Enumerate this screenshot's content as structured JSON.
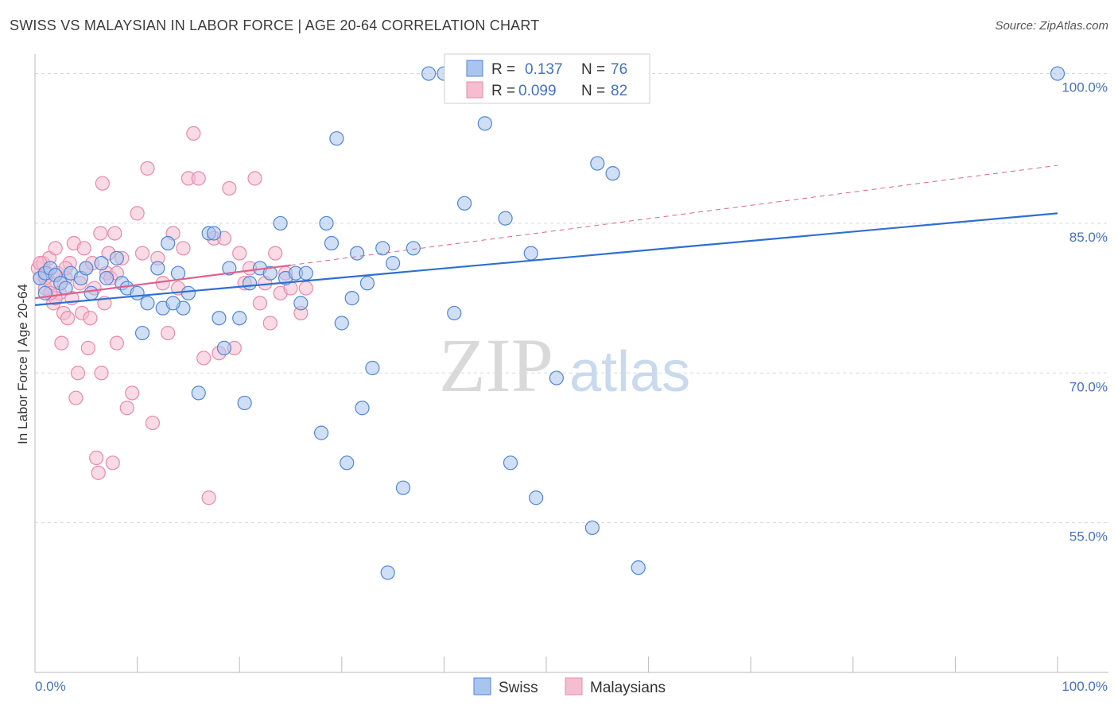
{
  "title": "SWISS VS MALAYSIAN IN LABOR FORCE | AGE 20-64 CORRELATION CHART",
  "source": "Source: ZipAtlas.com",
  "watermark": {
    "zip": "ZIP",
    "atlas": "atlas"
  },
  "colors": {
    "swiss_fill": "#a9c4ef",
    "swiss_stroke": "#4f86d6",
    "swiss_line": "#2f6fd0",
    "malay_fill": "#f6bcd0",
    "malay_stroke": "#e98aab",
    "malay_line": "#e0628c",
    "grid": "#d8d8d8",
    "label": "#4472c4"
  },
  "legend": {
    "swiss": {
      "r_label": "R =",
      "r_value": "0.137",
      "n_label": "N =",
      "n_value": "76"
    },
    "malay": {
      "r_label": "R =",
      "r_value": "0.099",
      "n_label": "N =",
      "n_value": "82"
    }
  },
  "chart_data": {
    "type": "scatter",
    "title": "SWISS VS MALAYSIAN IN LABOR FORCE | AGE 20-64 CORRELATION CHART",
    "xlabel": "",
    "ylabel": "In Labor Force | Age 20-64",
    "xlim": [
      0,
      100
    ],
    "ylim": [
      40,
      102
    ],
    "x_tick_labels": [
      "0.0%",
      "100.0%"
    ],
    "y_ticks": [
      55,
      70,
      85,
      100
    ],
    "y_tick_labels": [
      "55.0%",
      "70.0%",
      "85.0%",
      "100.0%"
    ],
    "grid": "horizontal dashed",
    "legend_position": "top-center",
    "series": [
      {
        "name": "Swiss",
        "R": 0.137,
        "N": 76,
        "trend": {
          "x": [
            0,
            100
          ],
          "y": [
            76.8,
            86.0
          ],
          "style": "solid"
        },
        "points": [
          [
            0.5,
            79.5
          ],
          [
            1.0,
            80.0
          ],
          [
            1.5,
            80.5
          ],
          [
            2.0,
            79.8
          ],
          [
            2.5,
            79.0
          ],
          [
            3.0,
            78.5
          ],
          [
            3.5,
            80.0
          ],
          [
            4.5,
            79.5
          ],
          [
            5.5,
            78.0
          ],
          [
            6.5,
            81.0
          ],
          [
            7.0,
            79.5
          ],
          [
            8.0,
            81.5
          ],
          [
            8.5,
            79.0
          ],
          [
            9.0,
            78.5
          ],
          [
            10.0,
            78.0
          ],
          [
            11.0,
            77.0
          ],
          [
            10.5,
            74.0
          ],
          [
            12.0,
            80.5
          ],
          [
            12.5,
            76.5
          ],
          [
            13.0,
            83.0
          ],
          [
            14.0,
            80.0
          ],
          [
            14.5,
            76.5
          ],
          [
            15.0,
            78.0
          ],
          [
            16.0,
            68.0
          ],
          [
            17.0,
            84.0
          ],
          [
            17.5,
            84.0
          ],
          [
            18.0,
            75.5
          ],
          [
            18.5,
            72.5
          ],
          [
            19.0,
            80.5
          ],
          [
            20.0,
            75.5
          ],
          [
            20.5,
            67.0
          ],
          [
            21.0,
            79.0
          ],
          [
            22.0,
            80.5
          ],
          [
            23.0,
            80.0
          ],
          [
            24.0,
            85.0
          ],
          [
            24.5,
            79.5
          ],
          [
            25.5,
            80.0
          ],
          [
            26.0,
            77.0
          ],
          [
            26.5,
            80.0
          ],
          [
            28.0,
            64.0
          ],
          [
            28.5,
            85.0
          ],
          [
            29.0,
            83.0
          ],
          [
            29.5,
            93.5
          ],
          [
            30.0,
            75.0
          ],
          [
            30.5,
            61.0
          ],
          [
            31.0,
            77.5
          ],
          [
            31.5,
            82.0
          ],
          [
            32.0,
            66.5
          ],
          [
            32.5,
            79.0
          ],
          [
            33.0,
            70.5
          ],
          [
            34.0,
            82.5
          ],
          [
            34.5,
            50.0
          ],
          [
            35.0,
            81.0
          ],
          [
            36.0,
            58.5
          ],
          [
            37.0,
            82.5
          ],
          [
            38.5,
            100.0
          ],
          [
            40.0,
            100.0
          ],
          [
            41.0,
            76.0
          ],
          [
            42.0,
            87.0
          ],
          [
            43.0,
            100.0
          ],
          [
            44.0,
            95.0
          ],
          [
            45.5,
            100.0
          ],
          [
            46.0,
            85.5
          ],
          [
            46.5,
            61.0
          ],
          [
            48.5,
            82.0
          ],
          [
            49.0,
            57.5
          ],
          [
            51.0,
            69.5
          ],
          [
            52.0,
            100.0
          ],
          [
            54.5,
            54.5
          ],
          [
            55.0,
            91.0
          ],
          [
            56.5,
            90.0
          ],
          [
            59.0,
            50.5
          ],
          [
            100.0,
            100.0
          ],
          [
            1.0,
            78.0
          ],
          [
            5.0,
            80.5
          ],
          [
            13.5,
            77.0
          ]
        ]
      },
      {
        "name": "Malaysians",
        "R": 0.099,
        "N": 82,
        "trend": {
          "x": [
            0,
            25
          ],
          "y": [
            77.5,
            80.8
          ],
          "style": "solid",
          "extended": {
            "x": [
              25,
              100
            ],
            "y": [
              80.8,
              90.8
            ],
            "style": "dashed"
          }
        },
        "points": [
          [
            0.3,
            80.5
          ],
          [
            0.5,
            79.5
          ],
          [
            0.8,
            81.0
          ],
          [
            1.0,
            78.5
          ],
          [
            1.2,
            80.0
          ],
          [
            1.4,
            81.5
          ],
          [
            1.6,
            79.0
          ],
          [
            1.8,
            77.0
          ],
          [
            2.0,
            82.5
          ],
          [
            2.2,
            80.0
          ],
          [
            2.4,
            78.0
          ],
          [
            2.6,
            73.0
          ],
          [
            2.8,
            76.0
          ],
          [
            3.0,
            79.5
          ],
          [
            3.2,
            75.5
          ],
          [
            3.4,
            81.0
          ],
          [
            3.6,
            77.5
          ],
          [
            3.8,
            83.0
          ],
          [
            4.0,
            67.5
          ],
          [
            4.2,
            70.0
          ],
          [
            4.4,
            79.0
          ],
          [
            4.6,
            76.0
          ],
          [
            4.8,
            82.5
          ],
          [
            5.0,
            80.5
          ],
          [
            5.2,
            72.5
          ],
          [
            5.4,
            75.5
          ],
          [
            5.6,
            81.0
          ],
          [
            5.8,
            78.5
          ],
          [
            6.0,
            61.5
          ],
          [
            6.2,
            60.0
          ],
          [
            6.4,
            84.0
          ],
          [
            6.6,
            89.0
          ],
          [
            6.8,
            77.0
          ],
          [
            7.0,
            80.0
          ],
          [
            7.2,
            82.0
          ],
          [
            7.4,
            79.5
          ],
          [
            7.6,
            61.0
          ],
          [
            7.8,
            84.0
          ],
          [
            8.0,
            80.0
          ],
          [
            8.5,
            81.5
          ],
          [
            9.0,
            66.5
          ],
          [
            9.5,
            68.0
          ],
          [
            10.0,
            86.0
          ],
          [
            10.5,
            82.0
          ],
          [
            11.0,
            90.5
          ],
          [
            11.5,
            65.0
          ],
          [
            12.0,
            81.5
          ],
          [
            12.5,
            79.0
          ],
          [
            13.0,
            74.0
          ],
          [
            13.5,
            84.0
          ],
          [
            14.0,
            78.5
          ],
          [
            14.5,
            82.5
          ],
          [
            15.0,
            89.5
          ],
          [
            15.5,
            94.0
          ],
          [
            16.0,
            89.5
          ],
          [
            16.5,
            71.5
          ],
          [
            17.0,
            57.5
          ],
          [
            17.5,
            83.5
          ],
          [
            18.0,
            72.0
          ],
          [
            18.5,
            83.5
          ],
          [
            19.0,
            88.5
          ],
          [
            19.5,
            72.5
          ],
          [
            20.0,
            82.0
          ],
          [
            20.5,
            79.0
          ],
          [
            21.0,
            80.5
          ],
          [
            21.5,
            89.5
          ],
          [
            22.0,
            77.0
          ],
          [
            22.5,
            79.0
          ],
          [
            23.0,
            75.0
          ],
          [
            23.5,
            82.0
          ],
          [
            24.0,
            78.0
          ],
          [
            24.5,
            80.0
          ],
          [
            25.0,
            78.5
          ],
          [
            26.0,
            76.0
          ],
          [
            26.5,
            78.5
          ],
          [
            1.0,
            79.5
          ],
          [
            2.0,
            77.5
          ],
          [
            3.0,
            80.5
          ],
          [
            0.5,
            81.0
          ],
          [
            1.5,
            78.0
          ],
          [
            6.5,
            70.0
          ],
          [
            8.0,
            73.0
          ]
        ]
      }
    ]
  },
  "bottom_legend": {
    "swiss": "Swiss",
    "malay": "Malaysians"
  }
}
